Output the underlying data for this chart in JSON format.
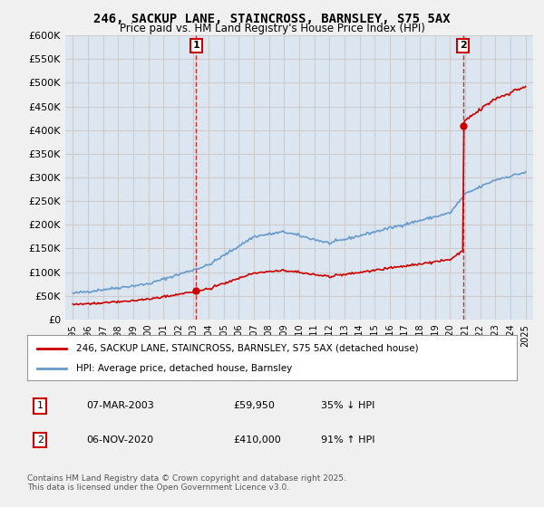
{
  "title": "246, SACKUP LANE, STAINCROSS, BARNSLEY, S75 5AX",
  "subtitle": "Price paid vs. HM Land Registry's House Price Index (HPI)",
  "legend_label_red": "246, SACKUP LANE, STAINCROSS, BARNSLEY, S75 5AX (detached house)",
  "legend_label_blue": "HPI: Average price, detached house, Barnsley",
  "annotation1_label": "1",
  "annotation1_date": "07-MAR-2003",
  "annotation1_price": "£59,950",
  "annotation1_hpi": "35% ↓ HPI",
  "annotation2_label": "2",
  "annotation2_date": "06-NOV-2020",
  "annotation2_price": "£410,000",
  "annotation2_hpi": "91% ↑ HPI",
  "footer": "Contains HM Land Registry data © Crown copyright and database right 2025.\nThis data is licensed under the Open Government Licence v3.0.",
  "red_color": "#cc0000",
  "blue_color": "#6699cc",
  "bg_color": "#dce6f0",
  "plot_bg": "#ffffff",
  "grid_color": "#cccccc",
  "year_start": 1995,
  "year_end": 2025,
  "ylim_max": 600000,
  "ytick_step": 50000,
  "sale1_year": 2003.18,
  "sale1_price": 59950,
  "sale2_year": 2020.85,
  "sale2_price": 410000
}
